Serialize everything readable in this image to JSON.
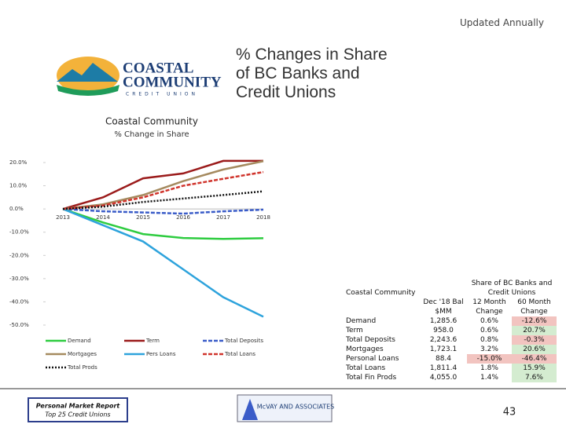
{
  "header": {
    "note": "Updated Annually",
    "title": "% Changes in Share of BC Banks and Credit Unions"
  },
  "logo": {
    "line1": "COASTAL",
    "line2": "COMMUNITY",
    "line3": "CREDIT UNION"
  },
  "chart_data": {
    "type": "line",
    "title": "Coastal Community",
    "subtitle": "% Change in Share",
    "categories": [
      "2013",
      "2014",
      "2015",
      "2016",
      "2017",
      "2018"
    ],
    "series": [
      {
        "name": "Demand",
        "color": "#2ecc40",
        "style": "solid",
        "values": [
          0,
          -5.8,
          -10.8,
          -12.5,
          -12.9,
          -12.6
        ]
      },
      {
        "name": "Term",
        "color": "#9b1b1b",
        "style": "solid",
        "values": [
          0,
          5,
          13.2,
          15.3,
          20.7,
          20.7
        ]
      },
      {
        "name": "Total Deposits",
        "color": "#3a5cc8",
        "style": "dashed",
        "values": [
          0,
          -1,
          -1.5,
          -2,
          -1,
          -0.3
        ]
      },
      {
        "name": "Mortgages",
        "color": "#a58a5f",
        "style": "solid",
        "values": [
          0,
          2,
          6,
          12,
          17,
          20.6
        ]
      },
      {
        "name": "Pers Loans",
        "color": "#2ea3dc",
        "style": "solid",
        "values": [
          0,
          -7,
          -14,
          -26,
          -38,
          -46.4
        ]
      },
      {
        "name": "Total Loans",
        "color": "#d0342c",
        "style": "dashed",
        "values": [
          0,
          1.5,
          5,
          10,
          13,
          15.9
        ]
      },
      {
        "name": "Total Prods",
        "color": "#111111",
        "style": "dotted",
        "values": [
          0,
          1,
          3,
          4.5,
          6,
          7.6
        ]
      }
    ],
    "ylim": [
      -50,
      20
    ],
    "yticks": [
      {
        "value": 20,
        "label": "20.0%"
      },
      {
        "value": 10,
        "label": "10.0%"
      },
      {
        "value": 0,
        "label": "0.0%"
      },
      {
        "value": -10,
        "label": "-10.0%"
      },
      {
        "value": -20,
        "label": "-20.0%"
      },
      {
        "value": -30,
        "label": "-30.0%"
      },
      {
        "value": -40,
        "label": "-40.0%"
      },
      {
        "value": -50,
        "label": "-50.0%"
      }
    ],
    "legend": "bottom"
  },
  "table": {
    "title": "Coastal Community",
    "header": [
      "Dec '18 Bal $MM",
      "Share of BC Banks and Credit Unions",
      "12 Month Change",
      "60 Month Change"
    ],
    "rows": [
      [
        "Demand",
        "1,285.6",
        "0.6%",
        "-12.6%"
      ],
      [
        "Term",
        "958.0",
        "0.6%",
        "20.7%"
      ],
      [
        "Total Deposits",
        "2,243.6",
        "0.8%",
        "-0.3%"
      ],
      [
        "Mortgages",
        "1,723.1",
        "3.2%",
        "20.6%"
      ],
      [
        "Personal Loans",
        "88.4",
        "-15.0%",
        "-46.4%"
      ],
      [
        "Total Loans",
        "1,811.4",
        "1.8%",
        "15.9%"
      ],
      [
        "Total Fin Prods",
        "4,055.0",
        "1.4%",
        "7.6%"
      ]
    ]
  },
  "footer": {
    "report": "Personal Market Report",
    "subtitle": "Top 25 Credit Unions",
    "company": "McVAY AND ASSOCIATES",
    "page": "43"
  }
}
